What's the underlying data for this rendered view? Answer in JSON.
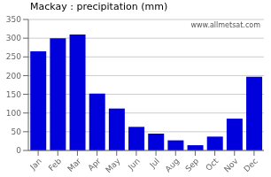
{
  "chart_data": {
    "type": "bar",
    "title": "Mackay : precipitation (mm)",
    "categories": [
      "Jan",
      "Feb",
      "Mar",
      "Apr",
      "May",
      "Jun",
      "Jul",
      "Aug",
      "Sep",
      "Oct",
      "Nov",
      "Dec"
    ],
    "values": [
      265,
      300,
      310,
      152,
      112,
      63,
      45,
      27,
      14,
      37,
      85,
      197
    ],
    "color": "#0000dd",
    "ylim": [
      0,
      350
    ],
    "yticks": [
      0,
      50,
      100,
      150,
      200,
      250,
      300,
      350
    ],
    "grid": true,
    "annotations": [
      "www.allmetsat.com"
    ]
  }
}
